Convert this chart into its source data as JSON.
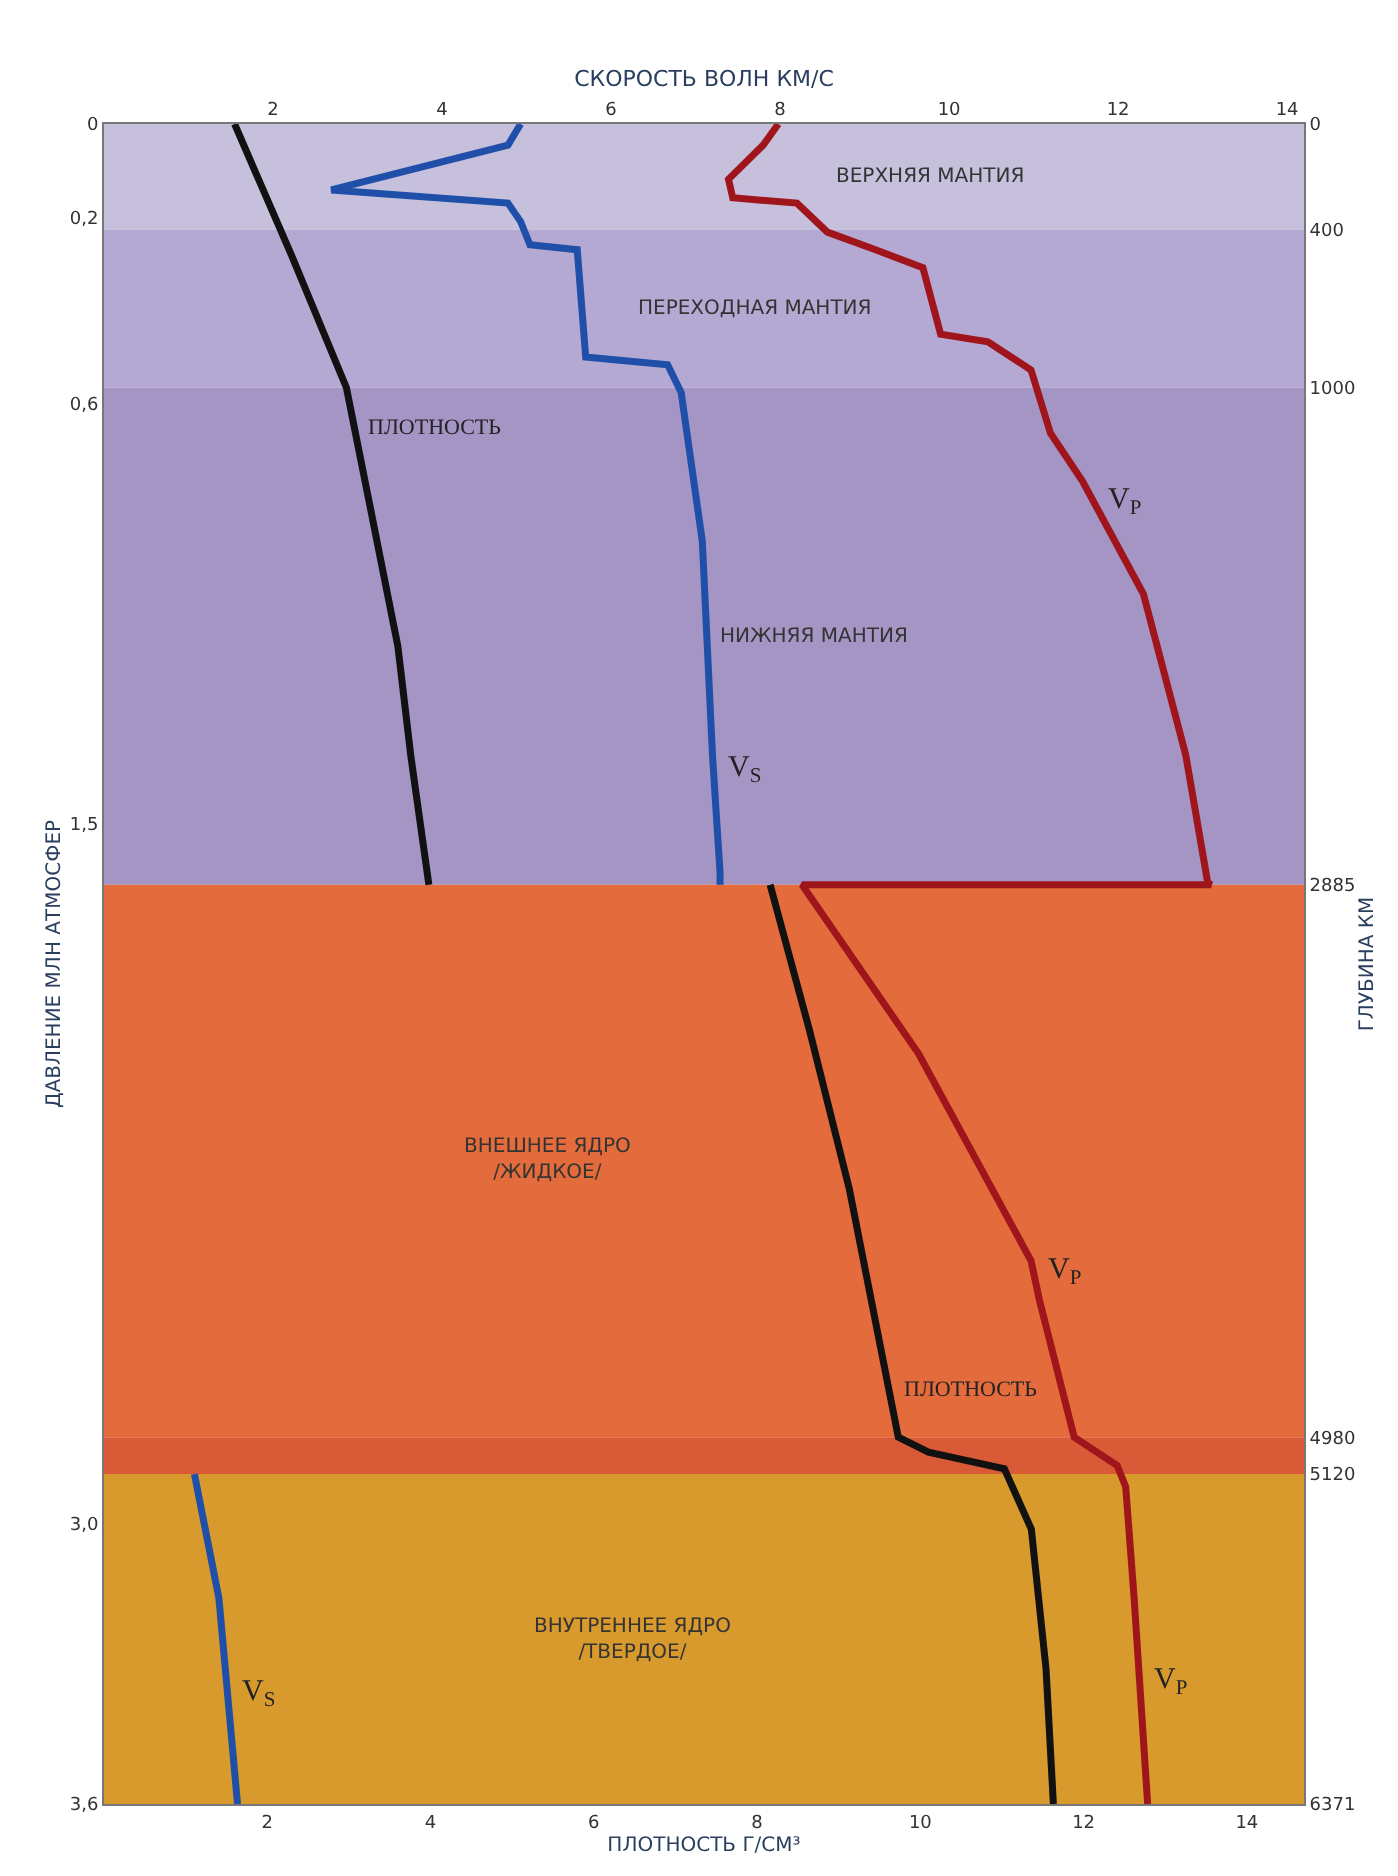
{
  "chart_data": {
    "type": "line",
    "orientation": "horizontal",
    "xlabel": "СКОРОСТЬ ВОЛН КМ/С",
    "x2label": "ПЛОТНОСТЬ Г/СМ³",
    "ylabel": "ГЛУБИНА КМ",
    "y2label": "ДАВЛЕНИЕ МЛН АТМОСФЕР",
    "xlim": [
      0,
      14.2
    ],
    "xticks": [
      2,
      4,
      6,
      8,
      10,
      12,
      14
    ],
    "x2lim": [
      0,
      14.7
    ],
    "x2ticks": [
      2,
      4,
      6,
      8,
      10,
      12,
      14
    ],
    "ylim": [
      6371,
      0
    ],
    "yticks": [
      0,
      400,
      1000,
      2885,
      4980,
      5120,
      6371
    ],
    "y2lim": [
      3.6,
      0
    ],
    "y2ticks": [
      0,
      {
        "value": 0.2,
        "label": "0,2"
      },
      {
        "value": 0.6,
        "label": "0,6"
      },
      {
        "value": 1.5,
        "label": "1,5"
      },
      {
        "value": 3.0,
        "label": "3,0"
      },
      {
        "value": 3.6,
        "label": "3,6"
      }
    ],
    "grid": false,
    "legend": false,
    "marker": "none",
    "line_style": "solid",
    "series": [
      {
        "color": "#111111",
        "axis": "x2",
        "x": [
          0,
          500,
          1000,
          1981,
          2400,
          2885
        ],
        "values": [
          1.6,
          2.3,
          2.97,
          3.6,
          3.76,
          3.98
        ]
      },
      {
        "color": "#111111",
        "axis": "x2",
        "x": [
          2885,
          3434,
          4038,
          4729,
          4980,
          5037,
          5100,
          5329,
          5859,
          6371
        ],
        "values": [
          8.16,
          8.64,
          9.13,
          9.57,
          9.73,
          10.1,
          11.03,
          11.36,
          11.54,
          11.63
        ]
      },
      {
        "color": "#1f4fa8",
        "x": [
          0,
          80,
          250,
          300,
          370,
          458,
          477,
          884,
          913,
          1018,
          1582,
          2392,
          2840,
          2885
        ],
        "values": [
          4.93,
          4.78,
          2.69,
          4.78,
          4.93,
          5.04,
          5.6,
          5.7,
          6.67,
          6.83,
          7.08,
          7.2,
          7.29,
          7.29
        ]
      },
      {
        "color": "#1f4fa8",
        "x": [
          5120,
          5591,
          6371
        ],
        "values": [
          1.07,
          1.36,
          1.58
        ]
      },
      {
        "color": "#a0141c",
        "x": [
          0,
          80,
          210,
          280,
          300,
          410,
          477,
          545,
          797,
          826,
          933,
          1173,
          1355,
          1783,
          2392,
          2876,
          2885,
          2885,
          3526,
          4311,
          4461,
          4980,
          5088,
          5168,
          5591,
          6371
        ],
        "values": [
          7.98,
          7.8,
          7.39,
          7.44,
          8.2,
          8.56,
          9.13,
          9.69,
          9.9,
          10.46,
          10.97,
          11.2,
          11.58,
          12.3,
          12.8,
          13.06,
          13.1,
          8.26,
          9.64,
          10.97,
          11.07,
          11.48,
          11.99,
          12.09,
          12.19,
          12.35
        ]
      }
    ],
    "bands": [
      {
        "axis": "y",
        "from": 0,
        "to": 400,
        "label": "ВЕРХНЯЯ МАНТИЯ",
        "color": "#c6c0dc"
      },
      {
        "axis": "y",
        "from": 400,
        "to": 1000,
        "label": "ПЕРЕХОДНАЯ МАНТИЯ",
        "color": "#b4a9d2"
      },
      {
        "axis": "y",
        "from": 1000,
        "to": 2885,
        "label": "НИЖНЯЯ МАНТИЯ",
        "color": "#a595c4"
      },
      {
        "axis": "y",
        "from": 2885,
        "to": 4980,
        "label": "ВНЕШНЕЕ ЯДРО\n/ЖИДКОЕ/",
        "color": "#e36b3c"
      },
      {
        "axis": "y",
        "from": 4980,
        "to": 5120,
        "color": "#d95a36"
      },
      {
        "axis": "y",
        "from": 5120,
        "to": 6371,
        "label": "ВНУТРЕННЕЕ ЯДРО\n/ТВЕРДОЕ/",
        "color": "#d89a2c"
      }
    ],
    "annotations": [
      {
        "text": "ПЛОТНОСТЬ",
        "x": 2.97,
        "y": 1155
      },
      {
        "text": "ПЛОТНОСТЬ",
        "x": 9.29,
        "y": 4800
      },
      {
        "text": "V$_{P}$",
        "x": 11.72,
        "y": 1437
      },
      {
        "text": "V$_{S}$",
        "x": 7.21,
        "y": 2447
      },
      {
        "text": "V$_{P}$",
        "x": 11.0,
        "y": 4356
      },
      {
        "text": "V$_{S}$",
        "x": 1.46,
        "y": 5955
      },
      {
        "text": "V$_{P}$",
        "x": 12.25,
        "y": 5908
      }
    ]
  }
}
